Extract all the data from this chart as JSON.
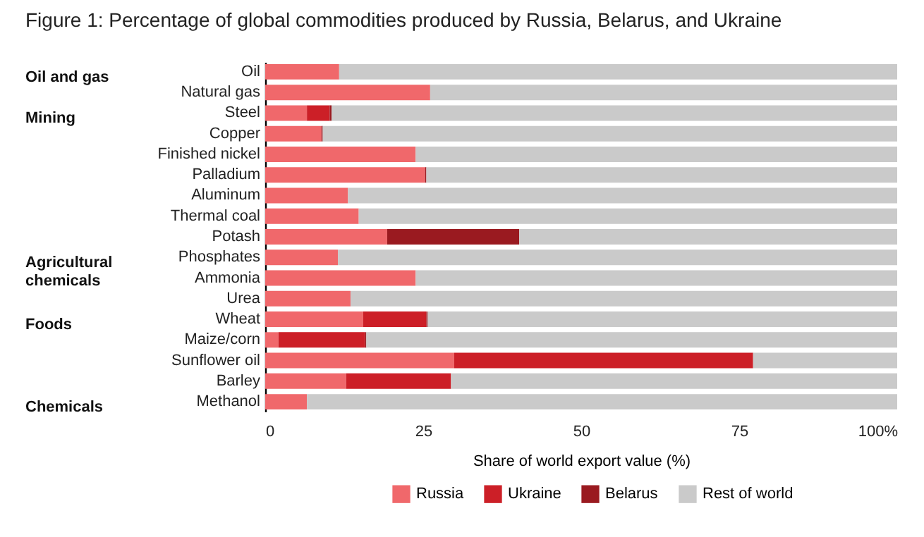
{
  "chart_data": {
    "type": "bar",
    "orientation": "horizontal",
    "stacked": true,
    "title": "Figure 1: Percentage of global commodities produced by Russia, Belarus, and Ukraine",
    "xlabel": "Share of world export value (%)",
    "categories": [
      "Oil",
      "Natural gas",
      "Steel",
      "Copper",
      "Finished nickel",
      "Palladium",
      "Aluminum",
      "Thermal coal",
      "Potash",
      "Phosphates",
      "Ammonia",
      "Urea",
      "Wheat",
      "Maize/corn",
      "Sunflower oil",
      "Barley",
      "Methanol"
    ],
    "series": [
      {
        "name": "Russia",
        "color": "#f0686b",
        "values": [
          11.7,
          26.1,
          6.6,
          8.9,
          23.8,
          25.3,
          13.1,
          14.8,
          19.3,
          11.5,
          23.8,
          13.5,
          15.5,
          2.1,
          29.9,
          12.8,
          6.6
        ]
      },
      {
        "name": "Ukraine",
        "color": "#cc1f27",
        "values": [
          0,
          0,
          3.6,
          0,
          0,
          0,
          0,
          0,
          0,
          0,
          0,
          0,
          10.0,
          13.7,
          47.3,
          16.6,
          0
        ]
      },
      {
        "name": "Belarus",
        "color": "#9a1a20",
        "values": [
          0,
          0,
          0.3,
          0.2,
          0,
          0.2,
          0,
          0,
          20.9,
          0,
          0,
          0,
          0.2,
          0.2,
          0,
          0,
          0
        ]
      },
      {
        "name": "Rest of world",
        "color": "#cacaca",
        "values": [
          88.3,
          73.9,
          89.5,
          90.9,
          76.2,
          74.5,
          86.9,
          85.2,
          59.8,
          88.5,
          76.2,
          86.5,
          74.3,
          84.0,
          22.8,
          70.6,
          93.4
        ]
      }
    ],
    "xlim": [
      0,
      100
    ],
    "xticks": [
      0,
      25,
      50,
      75,
      {
        "value": 100,
        "label": "100%"
      }
    ],
    "grid": false,
    "legend": "bottom",
    "annotations": [
      "Oil and gas",
      "Mining",
      "Agricultural chemicals",
      "Foods",
      "Chemicals"
    ]
  }
}
